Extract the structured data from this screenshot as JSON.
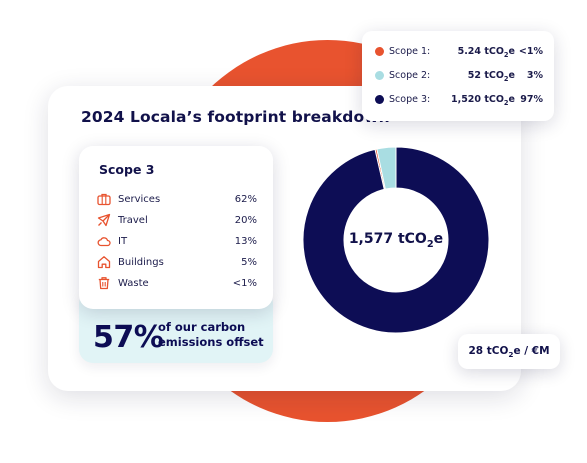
{
  "title": "2024 Locala’s footprint breakdown",
  "colors": {
    "accent": "#E8532F",
    "navy": "#0D0D55",
    "light_blue": "#A9DDE2",
    "offset_bg": "#E1F4F6"
  },
  "scope3_card": {
    "title": "Scope 3",
    "items": [
      {
        "icon": "briefcase-icon",
        "label": "Services",
        "percent": "62%"
      },
      {
        "icon": "airplane-icon",
        "label": "Travel",
        "percent": "20%"
      },
      {
        "icon": "cloud-icon",
        "label": "IT",
        "percent": "13%"
      },
      {
        "icon": "house-icon",
        "label": "Buildings",
        "percent": "5%"
      },
      {
        "icon": "trash-icon",
        "label": "Waste",
        "percent": "<1%"
      }
    ]
  },
  "offset": {
    "percent": "57%",
    "line1": "of our carbon",
    "line2": "emissions offset"
  },
  "legend": [
    {
      "name": "Scope 1:",
      "value": "5.24 tCO",
      "sub": "2",
      "suffix": "e",
      "share": "<1%",
      "color": "#E8532F"
    },
    {
      "name": "Scope 2:",
      "value": "52 tCO",
      "sub": "2",
      "suffix": "e",
      "share": "3%",
      "color": "#A9DDE2"
    },
    {
      "name": "Scope 3:",
      "value": "1,520 tCO",
      "sub": "2",
      "suffix": "e",
      "share": "97%",
      "color": "#0D0D55"
    }
  ],
  "donut": {
    "center_value": "1,577 tCO",
    "center_sub": "2",
    "center_suffix": "e"
  },
  "intensity": {
    "value": "28 tCO",
    "sub": "2",
    "suffix": "e / €M"
  },
  "chart_data": {
    "type": "pie",
    "categories": [
      "Scope 1",
      "Scope 2",
      "Scope 3"
    ],
    "values": [
      5.24,
      52,
      1520
    ],
    "colors": [
      "#E8532F",
      "#A9DDE2",
      "#0D0D55"
    ],
    "center_label": "1,577 tCO2e"
  }
}
